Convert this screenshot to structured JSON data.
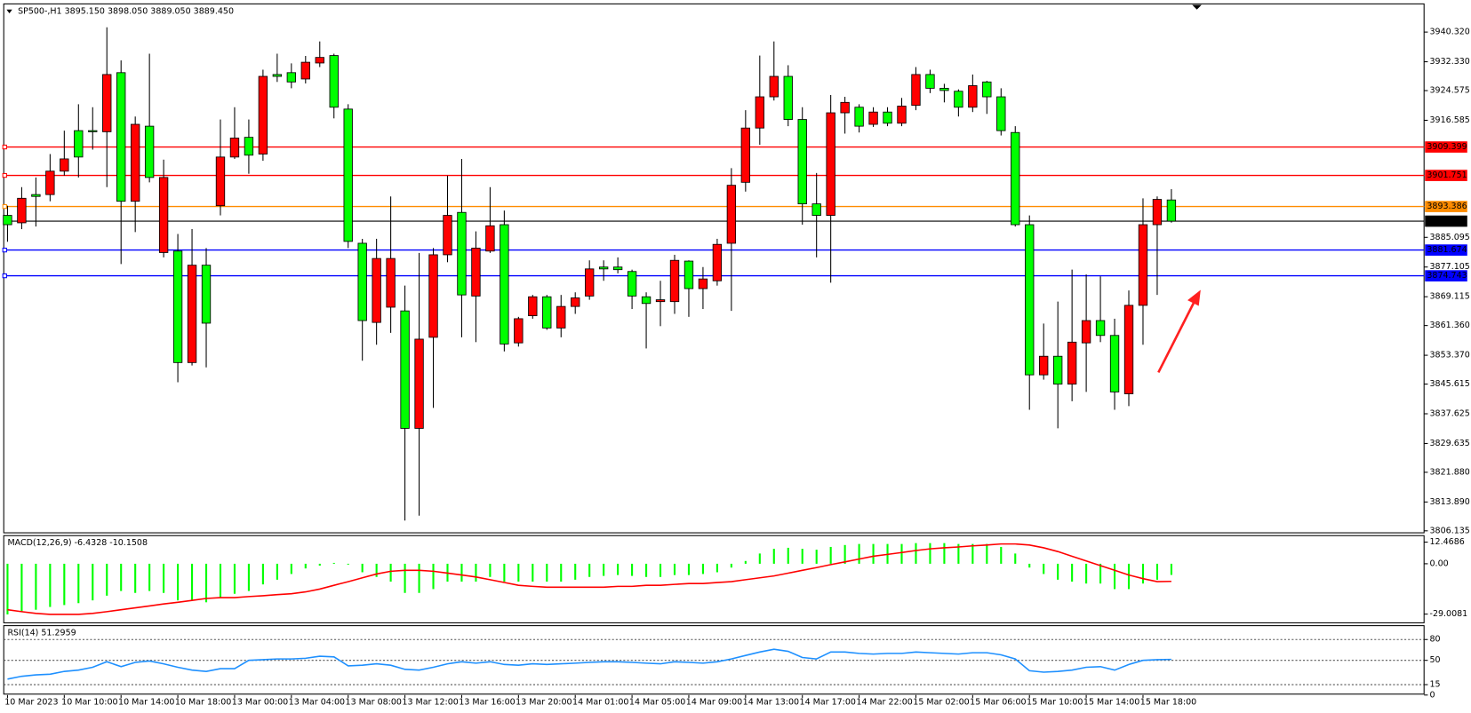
{
  "chart_data": [
    {
      "type": "candlestick",
      "title": "SP500-,H1  3895.150 3898.050 3889.050 3889.450",
      "up_color": "#ff0000",
      "down_color": "#00ff00",
      "categories": [
        "10 Mar 2023",
        null,
        null,
        null,
        "10 Mar 10:00",
        null,
        null,
        null,
        "10 Mar 14:00",
        null,
        null,
        null,
        "10 Mar 18:00",
        null,
        null,
        null,
        "13 Mar 00:00",
        null,
        null,
        null,
        "13 Mar 04:00",
        null,
        null,
        null,
        "13 Mar 08:00",
        null,
        null,
        null,
        "13 Mar 12:00",
        null,
        null,
        null,
        "13 Mar 16:00",
        null,
        null,
        null,
        "13 Mar 20:00",
        null,
        null,
        null,
        "14 Mar 01:00",
        null,
        null,
        null,
        "14 Mar 05:00",
        null,
        null,
        null,
        "14 Mar 09:00",
        null,
        null,
        null,
        "14 Mar 13:00",
        null,
        null,
        null,
        "14 Mar 17:00",
        null,
        null,
        null,
        "14 Mar 22:00",
        null,
        null,
        null,
        "15 Mar 02:00",
        null,
        null,
        null,
        "15 Mar 06:00",
        null,
        null,
        null,
        "15 Mar 10:00",
        null,
        null,
        null,
        "15 Mar 14:00",
        null,
        null,
        null,
        "15 Mar 18:00",
        null,
        null
      ],
      "open": [
        3891.0,
        3889.0,
        3896.6,
        3896.6,
        3902.9,
        3913.8,
        3913.8,
        3913.5,
        3929.4,
        3894.8,
        3915.0,
        3881.0,
        3881.4,
        3851.4,
        3877.6,
        3893.6,
        3906.7,
        3912.0,
        3907.5,
        3928.9,
        3929.4,
        3927.7,
        3932.0,
        3934.0,
        3919.6,
        3883.5,
        3862.2,
        3866.3,
        3865.3,
        3833.7,
        3858.2,
        3880.4,
        3891.8,
        3869.3,
        3881.4,
        3888.5,
        3856.7,
        3864.0,
        3869.1,
        3860.7,
        3866.5,
        3869.3,
        3877.1,
        3877.1,
        3875.9,
        3869.1,
        3867.8,
        3867.8,
        3878.7,
        3871.3,
        3873.4,
        3883.5,
        3899.9,
        3914.5,
        3922.9,
        3928.4,
        3916.8,
        3894.1,
        3891.0,
        3918.6,
        3920.1,
        3915.5,
        3918.8,
        3915.8,
        3920.6,
        3928.9,
        3925.2,
        3924.4,
        3920.1,
        3926.9,
        3922.9,
        3913.3,
        3888.5,
        3848.1,
        3853.1,
        3845.6,
        3856.7,
        3862.7,
        3858.7,
        3843.0,
        3866.8,
        3888.5,
        3895.15
      ],
      "high": [
        3893.6,
        3898.6,
        3901.2,
        3907.5,
        3913.8,
        3920.9,
        3920.1,
        3941.6,
        3932.7,
        3917.6,
        3934.5,
        3906.0,
        3886.0,
        3887.3,
        3882.2,
        3916.8,
        3920.1,
        3916.8,
        3930.2,
        3934.5,
        3931.9,
        3933.9,
        3937.8,
        3934.5,
        3920.9,
        3884.7,
        3884.7,
        3896.1,
        3872.1,
        3880.9,
        3882.2,
        3901.7,
        3906.2,
        3886.7,
        3898.6,
        3892.3,
        3863.7,
        3869.6,
        3869.6,
        3869.6,
        3870.3,
        3878.9,
        3878.9,
        3879.7,
        3876.4,
        3870.3,
        3873.4,
        3880.4,
        3878.9,
        3877.1,
        3884.7,
        3903.7,
        3919.3,
        3934.0,
        3937.8,
        3931.4,
        3920.1,
        3902.4,
        3923.4,
        3922.9,
        3920.9,
        3920.1,
        3920.1,
        3922.6,
        3930.9,
        3930.2,
        3926.4,
        3924.9,
        3928.9,
        3927.2,
        3925.2,
        3915.0,
        3891.0,
        3861.9,
        3867.8,
        3876.4,
        3875.1,
        3874.6,
        3863.2,
        3870.8,
        3895.6,
        3896.1,
        3898.05
      ],
      "low": [
        3883.9,
        3887.3,
        3888.0,
        3894.8,
        3901.7,
        3901.2,
        3908.7,
        3898.6,
        3877.9,
        3886.5,
        3899.9,
        3879.7,
        3846.1,
        3850.6,
        3850.1,
        3891.0,
        3906.2,
        3902.2,
        3905.7,
        3926.9,
        3925.2,
        3926.5,
        3930.9,
        3917.1,
        3882.2,
        3851.9,
        3856.2,
        3859.4,
        3808.9,
        3810.2,
        3839.2,
        3878.4,
        3858.2,
        3856.9,
        3880.9,
        3854.4,
        3855.7,
        3863.2,
        3860.2,
        3858.2,
        3864.5,
        3868.3,
        3873.4,
        3875.4,
        3865.8,
        3855.2,
        3861.2,
        3864.5,
        3863.7,
        3865.8,
        3872.1,
        3865.3,
        3897.4,
        3910.0,
        3921.9,
        3915.0,
        3888.5,
        3879.7,
        3872.9,
        3913.0,
        3913.3,
        3914.8,
        3915.0,
        3915.0,
        3919.3,
        3923.9,
        3921.4,
        3917.6,
        3918.8,
        3918.3,
        3912.5,
        3888.0,
        3838.7,
        3846.8,
        3833.7,
        3841.0,
        3843.5,
        3856.9,
        3838.7,
        3839.7,
        3856.2,
        3869.6,
        3889.05
      ],
      "close": [
        3888.5,
        3895.6,
        3896.1,
        3902.9,
        3906.2,
        3906.7,
        3913.5,
        3928.9,
        3894.8,
        3915.5,
        3901.2,
        3901.2,
        3851.4,
        3877.6,
        3862.0,
        3906.7,
        3911.8,
        3907.2,
        3928.4,
        3928.4,
        3926.9,
        3932.2,
        3933.5,
        3920.1,
        3884.0,
        3862.7,
        3879.4,
        3879.4,
        3833.7,
        3857.7,
        3880.4,
        3891.0,
        3869.6,
        3882.2,
        3888.2,
        3856.4,
        3863.2,
        3869.1,
        3860.7,
        3866.5,
        3868.8,
        3876.6,
        3876.6,
        3876.4,
        3869.3,
        3867.3,
        3868.3,
        3878.9,
        3871.3,
        3873.9,
        3883.2,
        3899.1,
        3914.5,
        3922.9,
        3928.4,
        3916.8,
        3894.1,
        3891.0,
        3918.6,
        3921.4,
        3915.0,
        3918.8,
        3915.8,
        3920.4,
        3928.9,
        3925.2,
        3924.6,
        3920.1,
        3925.9,
        3922.9,
        3913.8,
        3888.5,
        3848.1,
        3853.1,
        3845.6,
        3856.9,
        3862.7,
        3858.7,
        3843.5,
        3866.8,
        3888.5,
        3895.3,
        3889.45
      ],
      "hlines": [
        {
          "value": 3909.399,
          "color": "#ff0000"
        },
        {
          "value": 3901.751,
          "color": "#ff0000"
        },
        {
          "value": 3893.386,
          "color": "#ff8c00"
        },
        {
          "value": 3881.674,
          "color": "#0000ff"
        },
        {
          "value": 3874.743,
          "color": "#0000ff"
        }
      ],
      "last_price": {
        "value": 3889.45,
        "label": "3889.450"
      },
      "ylim": [
        3805.6,
        3947.9
      ],
      "yticks": [
        {
          "value": 3940.32,
          "label": "3940.320"
        },
        {
          "value": 3932.33,
          "label": "3932.330"
        },
        3924.575,
        3916.585,
        3885.095,
        3877.105,
        3869.115,
        {
          "value": 3861.36,
          "label": "3861.360"
        },
        {
          "value": 3853.37,
          "label": "3853.370"
        },
        3845.615,
        3837.625,
        3829.635,
        {
          "value": 3821.88,
          "label": "3821.880"
        },
        {
          "value": 3813.89,
          "label": "3813.890"
        },
        3806.135
      ]
    },
    {
      "type": "macd",
      "title": "MACD(12,26,9) -6.4328 -10.1508",
      "series": [
        {
          "style": "histogram",
          "color": "#00ff00",
          "values": [
            -29.2,
            -27.6,
            -26.5,
            -24.9,
            -23.8,
            -22.7,
            -21.1,
            -18.4,
            -15.7,
            -16.8,
            -15.7,
            -16.8,
            -21.1,
            -21.1,
            -22.2,
            -19.5,
            -17.3,
            -15.7,
            -11.9,
            -9.2,
            -5.9,
            -2.7,
            -1.1,
            0.5,
            -0.5,
            -4.9,
            -7.6,
            -10.3,
            -16.8,
            -16.8,
            -14.6,
            -10.3,
            -10.3,
            -10.3,
            -7.6,
            -10.3,
            -10.3,
            -10.3,
            -10.3,
            -10.3,
            -9.2,
            -7.6,
            -7.0,
            -6.5,
            -7.0,
            -7.6,
            -7.6,
            -6.5,
            -6.5,
            -5.9,
            -4.9,
            -2.2,
            1.6,
            5.9,
            8.6,
            9.2,
            8.6,
            8.1,
            9.7,
            10.8,
            11.4,
            11.4,
            11.4,
            11.4,
            11.9,
            11.9,
            11.9,
            11.4,
            11.4,
            11.4,
            9.7,
            5.9,
            -2.2,
            -5.9,
            -9.2,
            -10.3,
            -11.4,
            -11.4,
            -14.6,
            -14.6,
            -11.4,
            -9.2,
            -6.4328
          ]
        },
        {
          "style": "line",
          "color": "#ff0000",
          "values": [
            -26.5,
            -27.6,
            -28.6,
            -29.2,
            -29.2,
            -29.2,
            -28.6,
            -27.6,
            -26.5,
            -25.4,
            -24.3,
            -23.2,
            -22.2,
            -21.1,
            -20.0,
            -19.5,
            -19.5,
            -18.9,
            -18.4,
            -17.8,
            -17.3,
            -16.2,
            -14.6,
            -12.4,
            -10.3,
            -8.1,
            -5.9,
            -4.3,
            -3.8,
            -3.8,
            -4.3,
            -5.4,
            -6.5,
            -7.6,
            -9.2,
            -10.8,
            -12.4,
            -13.0,
            -13.5,
            -13.5,
            -13.5,
            -13.5,
            -13.5,
            -13.0,
            -13.0,
            -12.4,
            -12.4,
            -11.9,
            -11.4,
            -11.4,
            -10.8,
            -10.3,
            -9.2,
            -8.1,
            -7.0,
            -5.4,
            -3.8,
            -2.2,
            -0.5,
            1.1,
            2.7,
            4.3,
            5.4,
            6.5,
            7.6,
            8.6,
            9.2,
            9.7,
            10.3,
            10.8,
            11.4,
            11.4,
            10.8,
            9.2,
            7.0,
            4.3,
            1.6,
            -1.1,
            -3.8,
            -6.5,
            -8.6,
            -10.3,
            -10.1508
          ]
        }
      ],
      "ylim": [
        -33.5,
        14.05
      ],
      "yticks": [
        12.4686,
        {
          "value": 0,
          "label": "0.00"
        },
        -29.0081
      ]
    },
    {
      "type": "line",
      "title": "RSI(14) 51.2959",
      "series": [
        {
          "color": "#1e90ff",
          "values": [
            23,
            27,
            29,
            30,
            34,
            36,
            40,
            48,
            41,
            47,
            49,
            45,
            40,
            36,
            34,
            38,
            38,
            50,
            51,
            52,
            52,
            53,
            56,
            55,
            42,
            43,
            45,
            43,
            37,
            36,
            40,
            45,
            48,
            46,
            48,
            44,
            43,
            45,
            44,
            45,
            46,
            47,
            48,
            48,
            47,
            46,
            45,
            48,
            47,
            46,
            48,
            52,
            57,
            62,
            66,
            63,
            54,
            52,
            62,
            62,
            60,
            59,
            60,
            60,
            62,
            61,
            60,
            59,
            61,
            61,
            58,
            52,
            35,
            33,
            34,
            36,
            40,
            41,
            36,
            44,
            50,
            51,
            51.2959
          ]
        }
      ],
      "ylim": [
        0,
        100
      ],
      "yticks": [
        0,
        15,
        50,
        80
      ]
    }
  ]
}
